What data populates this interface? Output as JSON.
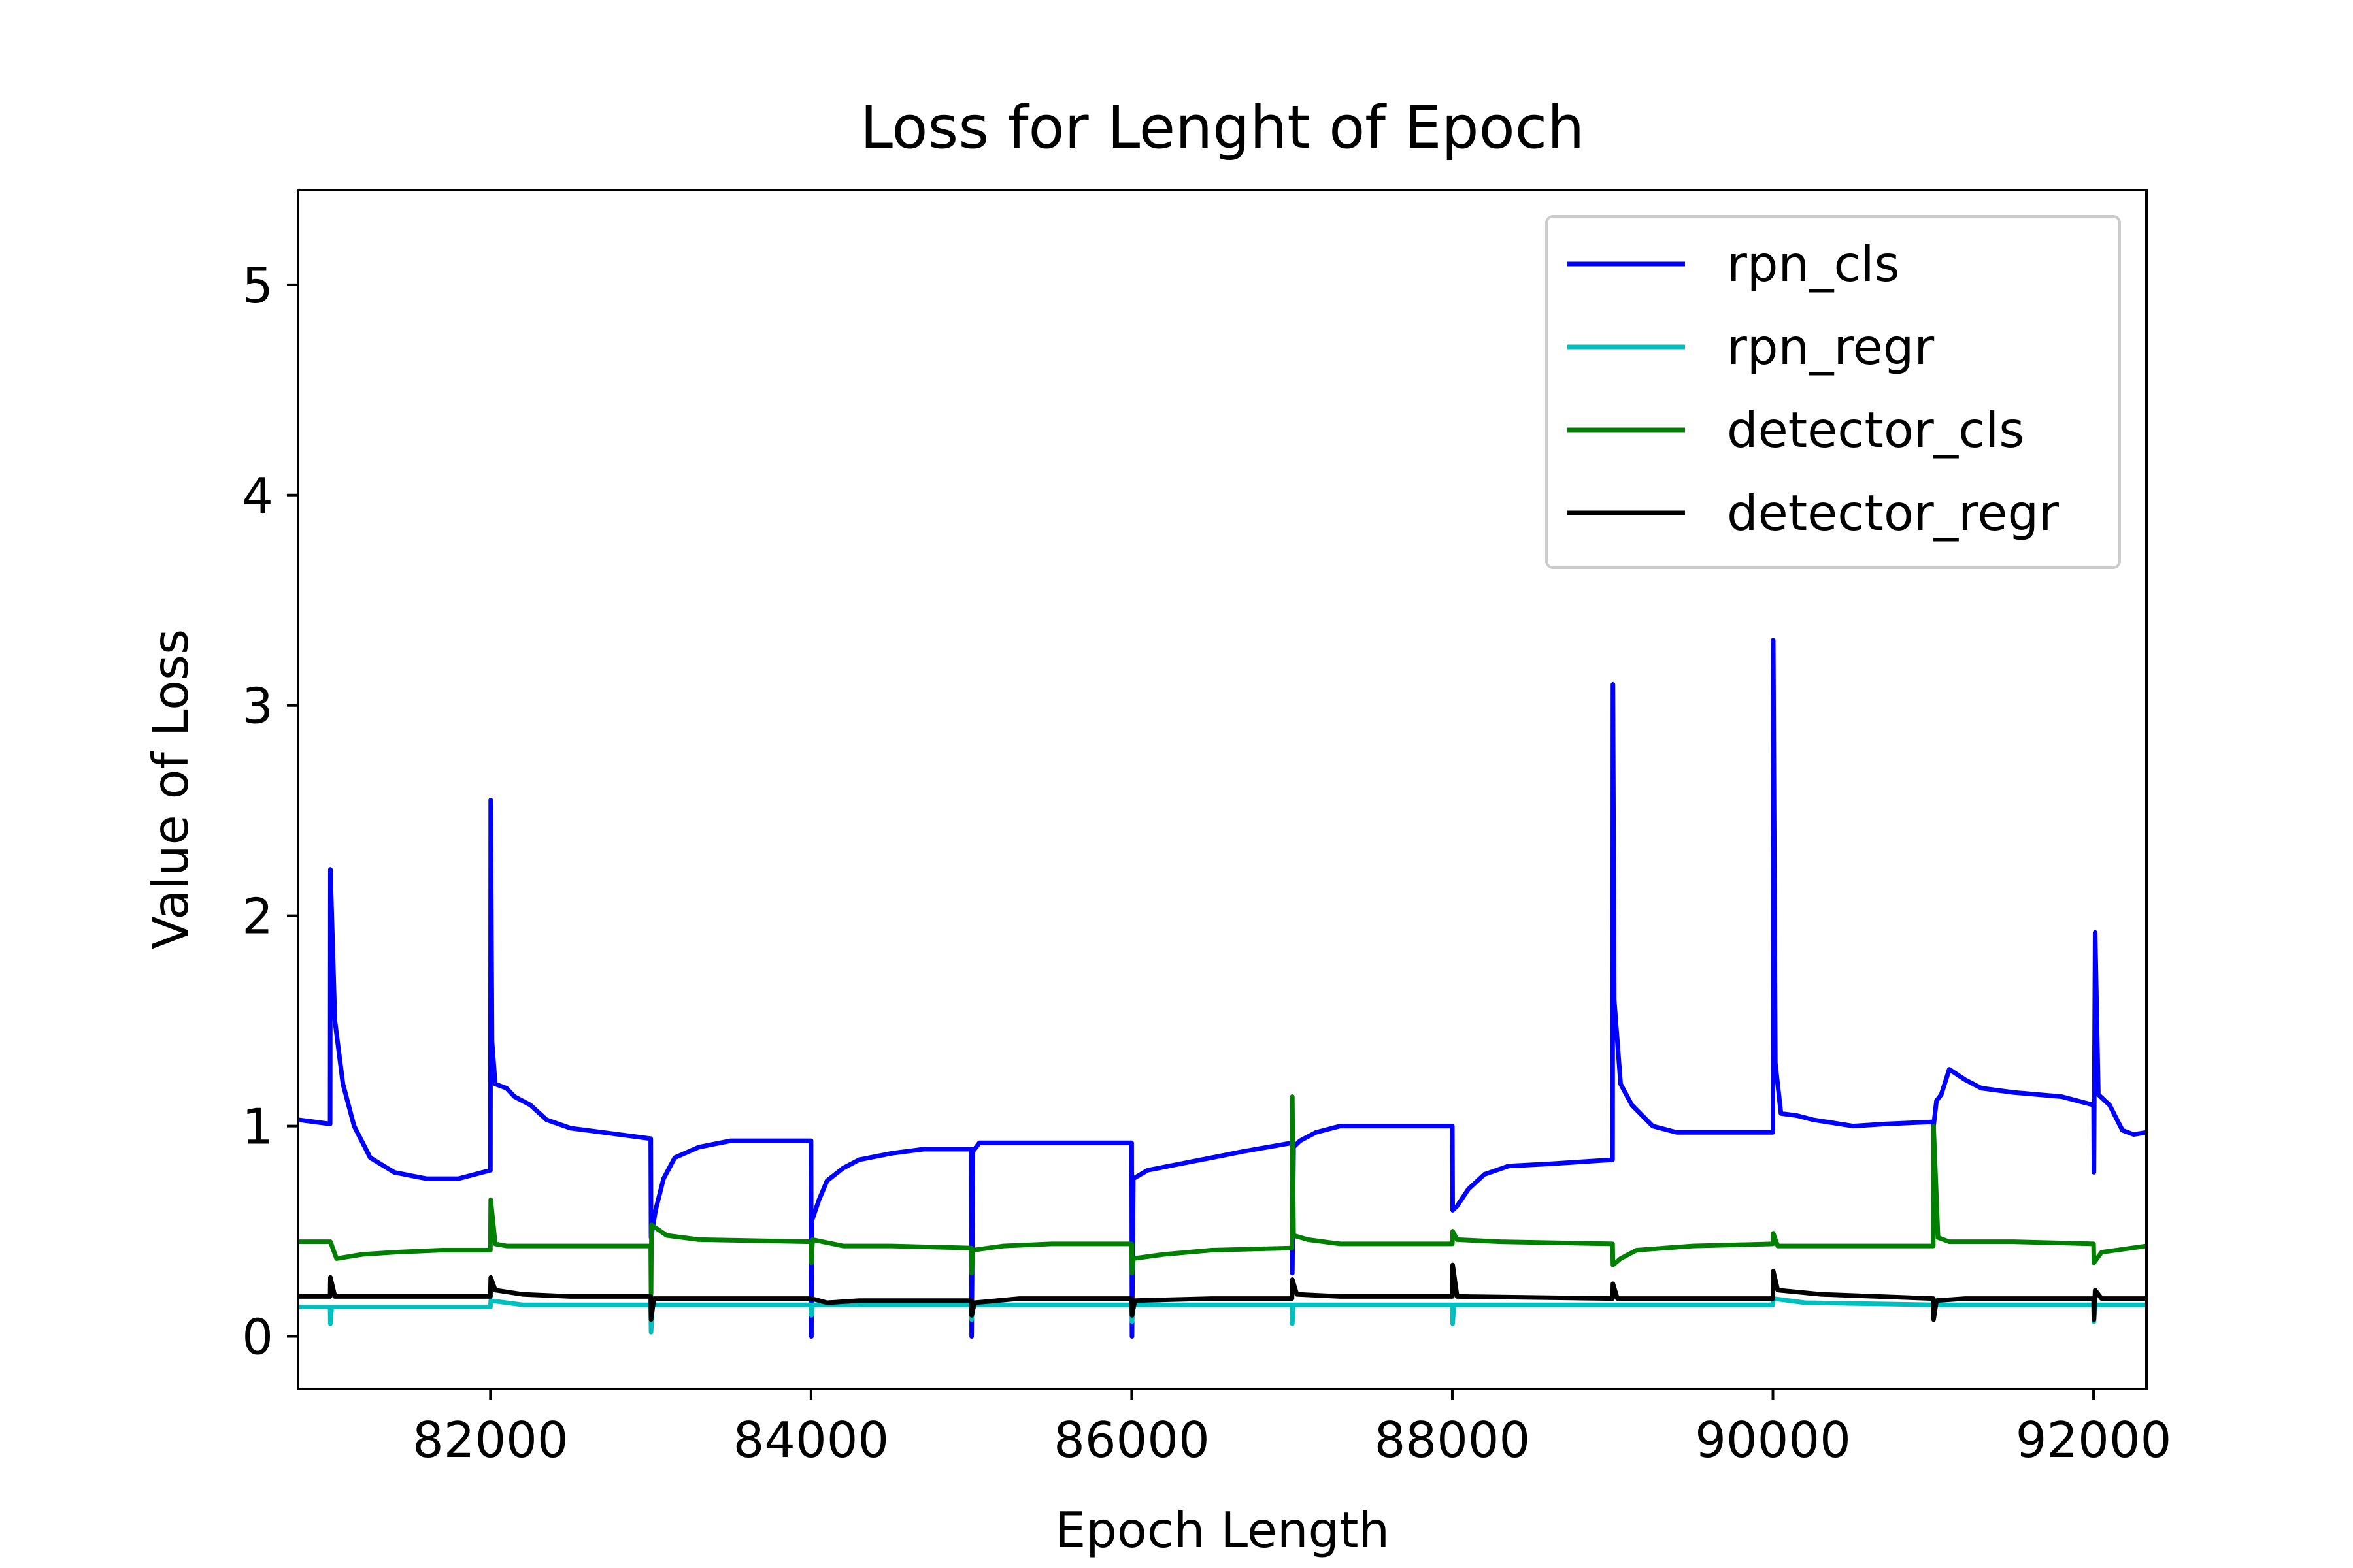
{
  "chart_data": {
    "type": "line",
    "title": "Loss for Lenght of Epoch",
    "xlabel": "Epoch Length",
    "ylabel": "Value of Loss",
    "xlim": [
      80800,
      92330
    ],
    "ylim": [
      -0.25,
      5.45
    ],
    "xticks": [
      82000,
      84000,
      86000,
      88000,
      90000,
      92000
    ],
    "yticks": [
      0,
      1,
      2,
      3,
      4,
      5
    ],
    "grid": false,
    "legend_position": "top-right",
    "series": [
      {
        "name": "rpn_cls",
        "color": "#0000ff",
        "points": [
          [
            80800,
            1.03
          ],
          [
            81000,
            1.01
          ],
          [
            81002,
            2.22
          ],
          [
            81030,
            1.5
          ],
          [
            81080,
            1.2
          ],
          [
            81150,
            1.0
          ],
          [
            81250,
            0.85
          ],
          [
            81400,
            0.78
          ],
          [
            81600,
            0.75
          ],
          [
            81800,
            0.75
          ],
          [
            82000,
            0.79
          ],
          [
            82002,
            2.55
          ],
          [
            82010,
            1.4
          ],
          [
            82030,
            1.2
          ],
          [
            82100,
            1.18
          ],
          [
            82150,
            1.14
          ],
          [
            82250,
            1.1
          ],
          [
            82350,
            1.03
          ],
          [
            82500,
            0.99
          ],
          [
            82700,
            0.97
          ],
          [
            83000,
            0.94
          ],
          [
            83002,
            0.47
          ],
          [
            83030,
            0.6
          ],
          [
            83080,
            0.75
          ],
          [
            83150,
            0.85
          ],
          [
            83300,
            0.9
          ],
          [
            83500,
            0.93
          ],
          [
            84000,
            0.93
          ],
          [
            84002,
            0.0
          ],
          [
            84005,
            0.55
          ],
          [
            84050,
            0.65
          ],
          [
            84100,
            0.74
          ],
          [
            84200,
            0.8
          ],
          [
            84300,
            0.84
          ],
          [
            84500,
            0.87
          ],
          [
            84700,
            0.89
          ],
          [
            85000,
            0.89
          ],
          [
            85002,
            0.0
          ],
          [
            85010,
            0.88
          ],
          [
            85050,
            0.92
          ],
          [
            85200,
            0.92
          ],
          [
            86000,
            0.92
          ],
          [
            86002,
            0.0
          ],
          [
            86010,
            0.75
          ],
          [
            86100,
            0.79
          ],
          [
            86300,
            0.82
          ],
          [
            86500,
            0.85
          ],
          [
            86700,
            0.88
          ],
          [
            87000,
            0.92
          ],
          [
            87002,
            0.3
          ],
          [
            87010,
            0.9
          ],
          [
            87050,
            0.93
          ],
          [
            87150,
            0.97
          ],
          [
            87300,
            1.0
          ],
          [
            87600,
            1.0
          ],
          [
            88000,
            1.0
          ],
          [
            88002,
            0.6
          ],
          [
            88030,
            0.62
          ],
          [
            88100,
            0.7
          ],
          [
            88200,
            0.77
          ],
          [
            88350,
            0.81
          ],
          [
            88600,
            0.82
          ],
          [
            89000,
            0.84
          ],
          [
            89002,
            3.1
          ],
          [
            89010,
            1.6
          ],
          [
            89050,
            1.2
          ],
          [
            89120,
            1.1
          ],
          [
            89250,
            1.0
          ],
          [
            89400,
            0.97
          ],
          [
            89700,
            0.97
          ],
          [
            90000,
            0.97
          ],
          [
            90002,
            3.31
          ],
          [
            90015,
            1.3
          ],
          [
            90050,
            1.06
          ],
          [
            90150,
            1.05
          ],
          [
            90250,
            1.03
          ],
          [
            90500,
            1.0
          ],
          [
            90700,
            1.01
          ],
          [
            91000,
            1.02
          ],
          [
            91002,
            1.0
          ],
          [
            91020,
            1.12
          ],
          [
            91050,
            1.15
          ],
          [
            91100,
            1.27
          ],
          [
            91200,
            1.22
          ],
          [
            91300,
            1.18
          ],
          [
            91500,
            1.16
          ],
          [
            91800,
            1.14
          ],
          [
            92000,
            1.1
          ],
          [
            92002,
            0.78
          ],
          [
            92010,
            1.92
          ],
          [
            92030,
            1.15
          ],
          [
            92100,
            1.1
          ],
          [
            92180,
            0.98
          ],
          [
            92250,
            0.96
          ],
          [
            92330,
            0.97
          ]
        ]
      },
      {
        "name": "rpn_regr",
        "color": "#00bfbf",
        "points": [
          [
            80800,
            0.14
          ],
          [
            81000,
            0.14
          ],
          [
            81002,
            0.06
          ],
          [
            81010,
            0.14
          ],
          [
            82000,
            0.14
          ],
          [
            82002,
            0.17
          ],
          [
            82200,
            0.15
          ],
          [
            83000,
            0.15
          ],
          [
            83002,
            0.02
          ],
          [
            83010,
            0.15
          ],
          [
            84000,
            0.15
          ],
          [
            84002,
            0.1
          ],
          [
            84010,
            0.15
          ],
          [
            85000,
            0.15
          ],
          [
            85002,
            0.08
          ],
          [
            85010,
            0.15
          ],
          [
            86000,
            0.15
          ],
          [
            86002,
            0.07
          ],
          [
            86010,
            0.15
          ],
          [
            87000,
            0.15
          ],
          [
            87002,
            0.06
          ],
          [
            87010,
            0.15
          ],
          [
            88000,
            0.15
          ],
          [
            88002,
            0.06
          ],
          [
            88010,
            0.15
          ],
          [
            89000,
            0.15
          ],
          [
            89002,
            0.15
          ],
          [
            90000,
            0.15
          ],
          [
            90002,
            0.18
          ],
          [
            90200,
            0.16
          ],
          [
            91000,
            0.15
          ],
          [
            91002,
            0.09
          ],
          [
            91010,
            0.15
          ],
          [
            92000,
            0.15
          ],
          [
            92002,
            0.07
          ],
          [
            92010,
            0.15
          ],
          [
            92330,
            0.15
          ]
        ]
      },
      {
        "name": "detector_cls",
        "color": "#008000",
        "points": [
          [
            80800,
            0.45
          ],
          [
            81000,
            0.45
          ],
          [
            81002,
            0.45
          ],
          [
            81040,
            0.37
          ],
          [
            81200,
            0.39
          ],
          [
            81400,
            0.4
          ],
          [
            81700,
            0.41
          ],
          [
            82000,
            0.41
          ],
          [
            82002,
            0.65
          ],
          [
            82030,
            0.44
          ],
          [
            82100,
            0.43
          ],
          [
            82500,
            0.43
          ],
          [
            83000,
            0.43
          ],
          [
            83002,
            0.2
          ],
          [
            83005,
            0.53
          ],
          [
            83100,
            0.48
          ],
          [
            83300,
            0.46
          ],
          [
            84000,
            0.45
          ],
          [
            84002,
            0.35
          ],
          [
            84010,
            0.46
          ],
          [
            84200,
            0.43
          ],
          [
            84500,
            0.43
          ],
          [
            85000,
            0.42
          ],
          [
            85002,
            0.3
          ],
          [
            85010,
            0.41
          ],
          [
            85200,
            0.43
          ],
          [
            85500,
            0.44
          ],
          [
            86000,
            0.44
          ],
          [
            86002,
            0.3
          ],
          [
            86010,
            0.37
          ],
          [
            86200,
            0.39
          ],
          [
            86500,
            0.41
          ],
          [
            87000,
            0.42
          ],
          [
            87002,
            1.14
          ],
          [
            87010,
            0.48
          ],
          [
            87100,
            0.46
          ],
          [
            87300,
            0.44
          ],
          [
            87600,
            0.44
          ],
          [
            88000,
            0.44
          ],
          [
            88002,
            0.5
          ],
          [
            88030,
            0.46
          ],
          [
            88300,
            0.45
          ],
          [
            89000,
            0.44
          ],
          [
            89002,
            0.34
          ],
          [
            89050,
            0.37
          ],
          [
            89150,
            0.41
          ],
          [
            89500,
            0.43
          ],
          [
            90000,
            0.44
          ],
          [
            90002,
            0.49
          ],
          [
            90030,
            0.43
          ],
          [
            90300,
            0.43
          ],
          [
            91000,
            0.43
          ],
          [
            91002,
            1.0
          ],
          [
            91030,
            0.47
          ],
          [
            91100,
            0.45
          ],
          [
            91500,
            0.45
          ],
          [
            92000,
            0.44
          ],
          [
            92002,
            0.35
          ],
          [
            92050,
            0.4
          ],
          [
            92330,
            0.43
          ]
        ]
      },
      {
        "name": "detector_regr",
        "color": "#000000",
        "points": [
          [
            80800,
            0.19
          ],
          [
            81000,
            0.19
          ],
          [
            81002,
            0.28
          ],
          [
            81030,
            0.19
          ],
          [
            82000,
            0.19
          ],
          [
            82002,
            0.28
          ],
          [
            82030,
            0.22
          ],
          [
            82200,
            0.2
          ],
          [
            82500,
            0.19
          ],
          [
            83000,
            0.19
          ],
          [
            83002,
            0.08
          ],
          [
            83020,
            0.18
          ],
          [
            84000,
            0.18
          ],
          [
            84002,
            0.18
          ],
          [
            84100,
            0.16
          ],
          [
            84300,
            0.17
          ],
          [
            85000,
            0.17
          ],
          [
            85002,
            0.1
          ],
          [
            85020,
            0.16
          ],
          [
            85300,
            0.18
          ],
          [
            86000,
            0.18
          ],
          [
            86002,
            0.1
          ],
          [
            86020,
            0.17
          ],
          [
            86500,
            0.18
          ],
          [
            87000,
            0.18
          ],
          [
            87002,
            0.27
          ],
          [
            87030,
            0.2
          ],
          [
            87300,
            0.19
          ],
          [
            88000,
            0.19
          ],
          [
            88002,
            0.34
          ],
          [
            88030,
            0.19
          ],
          [
            89000,
            0.18
          ],
          [
            89002,
            0.25
          ],
          [
            89030,
            0.18
          ],
          [
            90000,
            0.18
          ],
          [
            90002,
            0.31
          ],
          [
            90030,
            0.22
          ],
          [
            90300,
            0.2
          ],
          [
            91000,
            0.18
          ],
          [
            91002,
            0.08
          ],
          [
            91020,
            0.17
          ],
          [
            91200,
            0.18
          ],
          [
            92000,
            0.18
          ],
          [
            92002,
            0.08
          ],
          [
            92010,
            0.22
          ],
          [
            92050,
            0.18
          ],
          [
            92330,
            0.18
          ]
        ]
      }
    ]
  }
}
